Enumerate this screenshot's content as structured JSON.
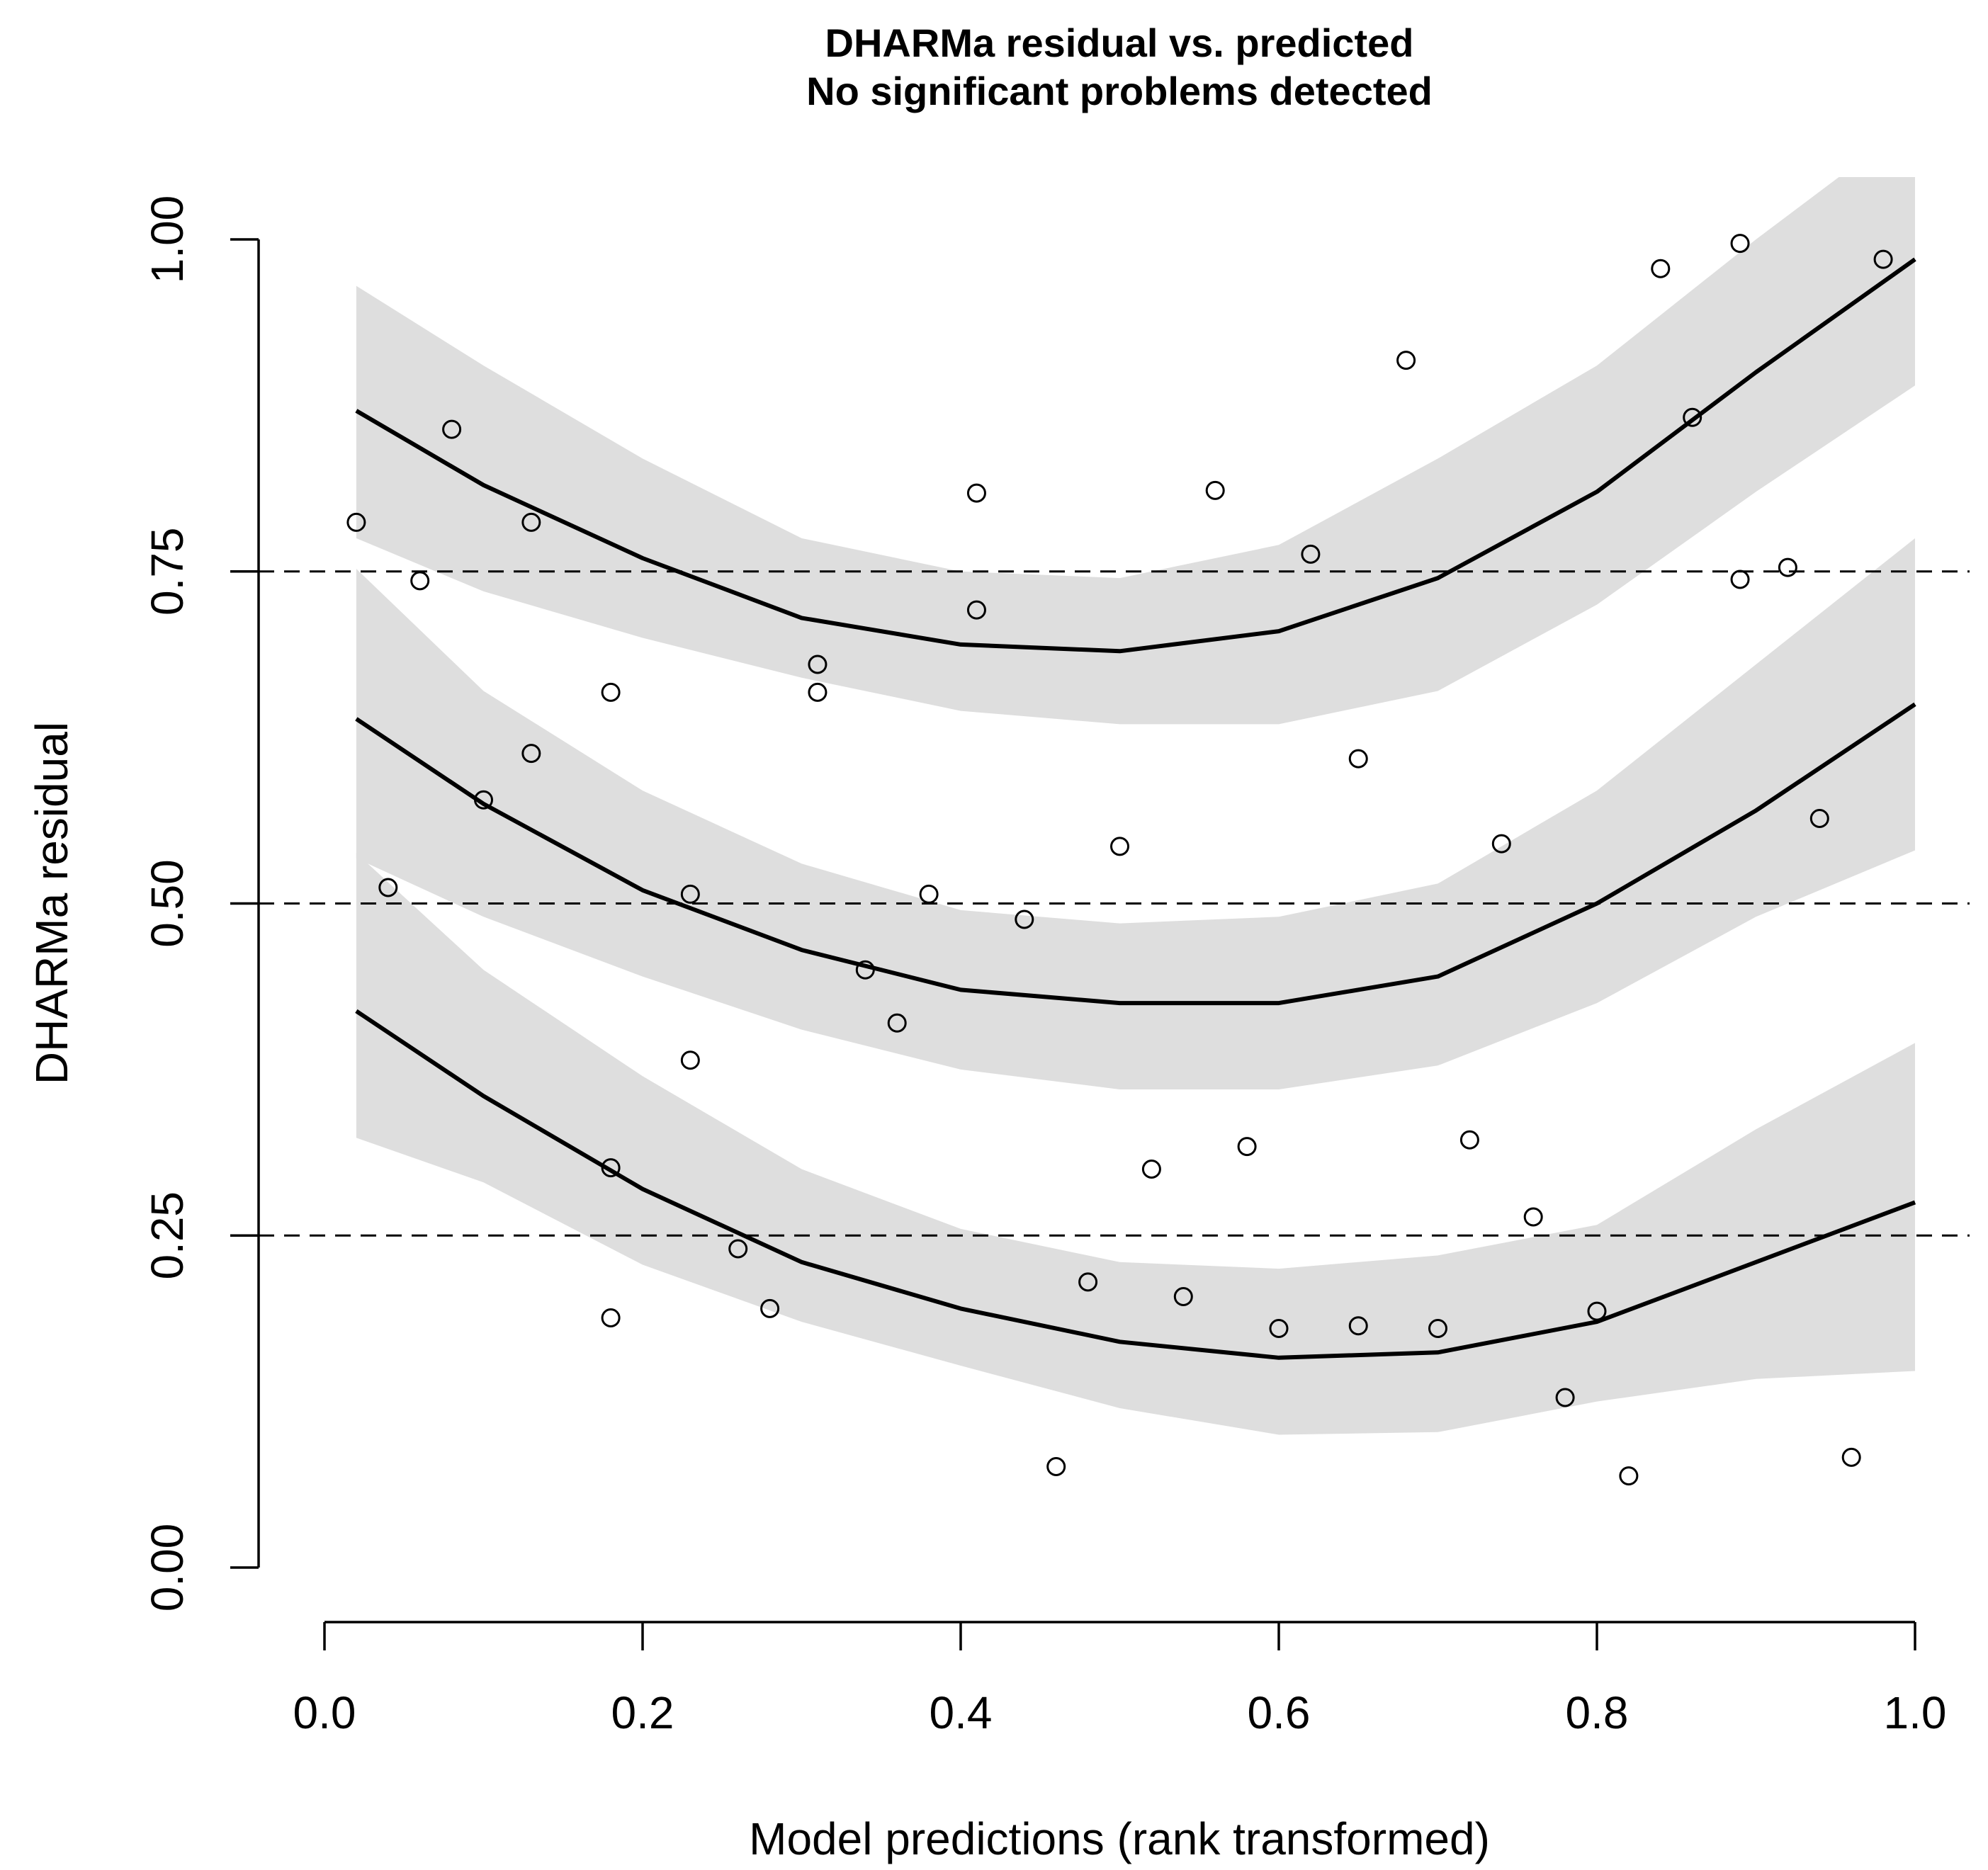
{
  "chart_data": {
    "type": "scatter",
    "title": "DHARMa residual vs. predicted",
    "subtitle": "No significant problems detected",
    "xlabel": "Model predictions (rank transformed)",
    "ylabel": "DHARMa residual",
    "xlim": [
      0.0,
      1.0
    ],
    "ylim": [
      0.0,
      1.0
    ],
    "x_ticks": [
      "0.0",
      "0.2",
      "0.4",
      "0.6",
      "0.8",
      "1.0"
    ],
    "y_ticks": [
      "0.00",
      "0.25",
      "0.50",
      "0.75",
      "1.00"
    ],
    "reference_lines": [
      0.25,
      0.5,
      0.75
    ],
    "points": [
      [
        0.02,
        0.787
      ],
      [
        0.04,
        0.512
      ],
      [
        0.06,
        0.743
      ],
      [
        0.08,
        0.857
      ],
      [
        0.1,
        0.578
      ],
      [
        0.13,
        0.613
      ],
      [
        0.13,
        0.787
      ],
      [
        0.18,
        0.659
      ],
      [
        0.18,
        0.301
      ],
      [
        0.18,
        0.188
      ],
      [
        0.23,
        0.507
      ],
      [
        0.23,
        0.382
      ],
      [
        0.26,
        0.24
      ],
      [
        0.28,
        0.195
      ],
      [
        0.31,
        0.68
      ],
      [
        0.31,
        0.659
      ],
      [
        0.34,
        0.45
      ],
      [
        0.36,
        0.41
      ],
      [
        0.38,
        0.507
      ],
      [
        0.41,
        0.809
      ],
      [
        0.41,
        0.721
      ],
      [
        0.44,
        0.488
      ],
      [
        0.46,
        0.076
      ],
      [
        0.48,
        0.215
      ],
      [
        0.5,
        0.543
      ],
      [
        0.52,
        0.3
      ],
      [
        0.54,
        0.204
      ],
      [
        0.56,
        0.811
      ],
      [
        0.58,
        0.317
      ],
      [
        0.6,
        0.18
      ],
      [
        0.62,
        0.763
      ],
      [
        0.65,
        0.609
      ],
      [
        0.65,
        0.182
      ],
      [
        0.68,
        0.909
      ],
      [
        0.7,
        0.18
      ],
      [
        0.72,
        0.322
      ],
      [
        0.74,
        0.545
      ],
      [
        0.76,
        0.264
      ],
      [
        0.78,
        0.128
      ],
      [
        0.8,
        0.193
      ],
      [
        0.82,
        0.069
      ],
      [
        0.84,
        0.978
      ],
      [
        0.86,
        0.866
      ],
      [
        0.89,
        0.997
      ],
      [
        0.89,
        0.744
      ],
      [
        0.92,
        0.753
      ],
      [
        0.94,
        0.564
      ],
      [
        0.96,
        0.083
      ],
      [
        0.98,
        0.985
      ]
    ],
    "quantile_fits": [
      {
        "quantile": 0.25,
        "x": [
          0.0,
          0.1,
          0.2,
          0.3,
          0.4,
          0.5,
          0.6,
          0.7,
          0.8,
          0.9,
          1.0
        ],
        "fit": [
          0.435,
          0.355,
          0.285,
          0.23,
          0.195,
          0.17,
          0.158,
          0.162,
          0.185,
          0.23,
          0.275
        ],
        "lower": [
          0.332,
          0.29,
          0.228,
          0.185,
          0.152,
          0.12,
          0.1,
          0.102,
          0.125,
          0.142,
          0.148
        ],
        "upper": [
          0.56,
          0.45,
          0.37,
          0.3,
          0.255,
          0.23,
          0.225,
          0.235,
          0.258,
          0.33,
          0.395
        ]
      },
      {
        "quantile": 0.5,
        "x": [
          0.0,
          0.1,
          0.2,
          0.3,
          0.4,
          0.5,
          0.6,
          0.7,
          0.8,
          0.9,
          1.0
        ],
        "fit": [
          0.655,
          0.575,
          0.51,
          0.465,
          0.435,
          0.425,
          0.425,
          0.445,
          0.5,
          0.57,
          0.65
        ],
        "lower": [
          0.545,
          0.49,
          0.445,
          0.405,
          0.375,
          0.36,
          0.36,
          0.378,
          0.425,
          0.49,
          0.54
        ],
        "upper": [
          0.775,
          0.66,
          0.585,
          0.53,
          0.495,
          0.485,
          0.49,
          0.515,
          0.585,
          0.68,
          0.775
        ]
      },
      {
        "quantile": 0.75,
        "x": [
          0.0,
          0.1,
          0.2,
          0.3,
          0.4,
          0.5,
          0.6,
          0.7,
          0.8,
          0.9,
          1.0
        ],
        "fit": [
          0.885,
          0.815,
          0.76,
          0.715,
          0.695,
          0.69,
          0.705,
          0.745,
          0.81,
          0.9,
          0.985
        ],
        "lower": [
          0.785,
          0.735,
          0.7,
          0.67,
          0.645,
          0.635,
          0.635,
          0.66,
          0.725,
          0.81,
          0.89
        ],
        "upper": [
          0.98,
          0.905,
          0.835,
          0.775,
          0.75,
          0.745,
          0.77,
          0.835,
          0.905,
          1.0,
          1.09
        ]
      }
    ]
  }
}
